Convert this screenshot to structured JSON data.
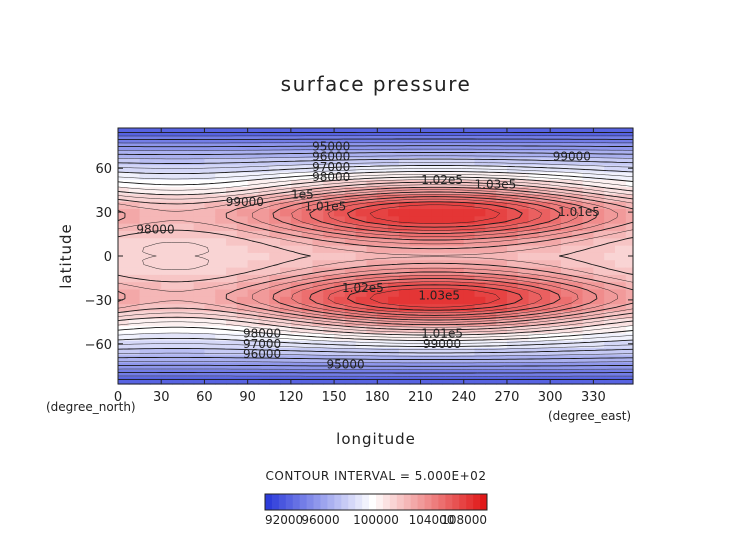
{
  "chart_data": {
    "type": "heatmap",
    "title": "surface pressure",
    "xlabel": "longitude",
    "ylabel": "latitude",
    "x_unit": "(degree_east)",
    "y_unit": "(degree_north)",
    "xlim": [
      0,
      357.5
    ],
    "ylim": [
      -87.5,
      87.5
    ],
    "x_ticks": [
      "0",
      "30",
      "60",
      "90",
      "120",
      "150",
      "180",
      "210",
      "240",
      "270",
      "300",
      "330"
    ],
    "y_ticks": [
      "60",
      "30",
      "0",
      "−30",
      "−60"
    ],
    "contour_interval_text": "CONTOUR INTERVAL = 5.000E+02",
    "contour_interval": 500,
    "colorbar": {
      "range": [
        92000,
        108000
      ],
      "tick_labels": [
        "92000",
        "96000",
        "100000",
        "104000",
        "108000"
      ],
      "low_color": "#1f2fd8",
      "mid_color": "#ffffff",
      "high_color": "#e01818"
    },
    "contour_labels": [
      {
        "text": "95000",
        "lon": 148,
        "lat": 75
      },
      {
        "text": "96000",
        "lon": 148,
        "lat": 68
      },
      {
        "text": "97000",
        "lon": 148,
        "lat": 61
      },
      {
        "text": "98000",
        "lon": 148,
        "lat": 54
      },
      {
        "text": "1e5",
        "lon": 128,
        "lat": 42
      },
      {
        "text": "99000",
        "lon": 88,
        "lat": 37
      },
      {
        "text": "1.01e5",
        "lon": 144,
        "lat": 34
      },
      {
        "text": "1.02e5",
        "lon": 225,
        "lat": 52
      },
      {
        "text": "1.03e5",
        "lon": 262,
        "lat": 49
      },
      {
        "text": "1.01e5",
        "lon": 320,
        "lat": 30
      },
      {
        "text": "99000",
        "lon": 315,
        "lat": 68
      },
      {
        "text": "98000",
        "lon": 26,
        "lat": 18
      },
      {
        "text": "1.02e5",
        "lon": 170,
        "lat": -22
      },
      {
        "text": "1.03e5",
        "lon": 223,
        "lat": -27
      },
      {
        "text": "1.01e5",
        "lon": 225,
        "lat": -53
      },
      {
        "text": "99000",
        "lon": 225,
        "lat": -60
      },
      {
        "text": "98000",
        "lon": 100,
        "lat": -53
      },
      {
        "text": "97000",
        "lon": 100,
        "lat": -60
      },
      {
        "text": "96000",
        "lon": 100,
        "lat": -67
      },
      {
        "text": "95000",
        "lon": 158,
        "lat": -74
      }
    ]
  }
}
